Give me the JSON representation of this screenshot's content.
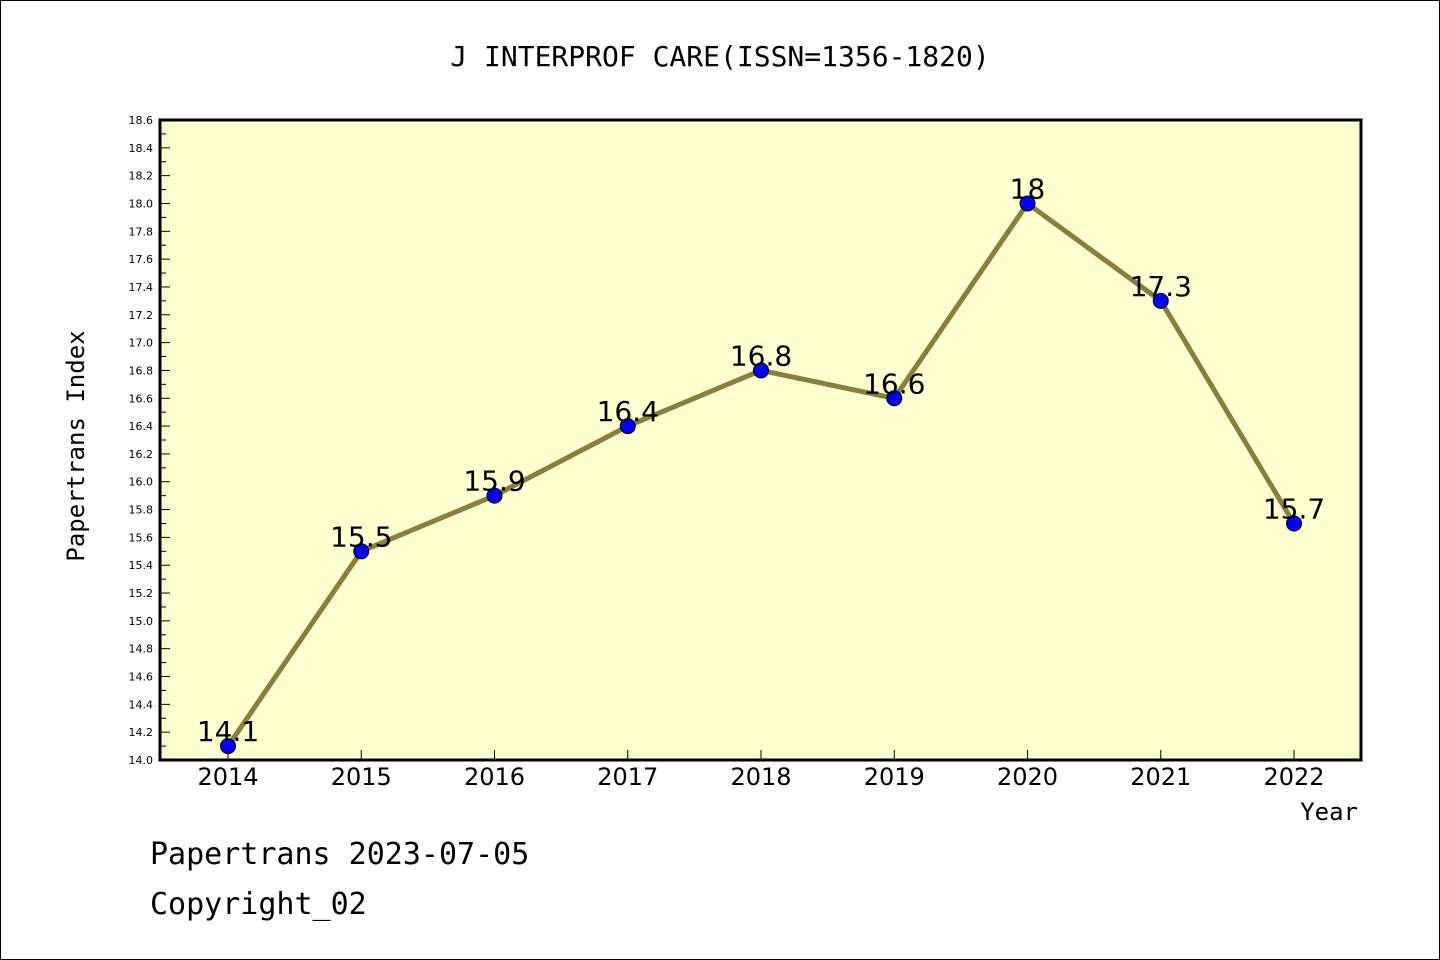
{
  "chart_data": {
    "type": "line",
    "title": "J INTERPROF CARE(ISSN=1356-1820)",
    "xlabel": "Year",
    "ylabel": "Papertrans Index",
    "categories": [
      "2014",
      "2015",
      "2016",
      "2017",
      "2018",
      "2019",
      "2020",
      "2021",
      "2022"
    ],
    "values": [
      14.1,
      15.5,
      15.9,
      16.4,
      16.8,
      16.6,
      18.0,
      17.3,
      15.7
    ],
    "data_labels": [
      "14.1",
      "15.5",
      "15.9",
      "16.4",
      "16.8",
      "16.6",
      "18",
      "17.3",
      "15.7"
    ],
    "ylim": [
      14.0,
      18.6
    ],
    "yticks": [
      "14.0",
      "14.2",
      "14.4",
      "14.6",
      "14.8",
      "15.0",
      "15.2",
      "15.4",
      "15.6",
      "15.8",
      "16.0",
      "16.2",
      "16.4",
      "16.6",
      "16.8",
      "17.0",
      "17.2",
      "17.4",
      "17.6",
      "17.8",
      "18.0",
      "18.2",
      "18.4",
      "18.6"
    ],
    "grid": false,
    "line_color": "#8b7d3a",
    "marker_color": "#0000ff",
    "plot_background": "#ffffd0"
  },
  "footer": {
    "date_line": "Papertrans 2023-07-05",
    "copyright_line": "Copyright_02"
  }
}
